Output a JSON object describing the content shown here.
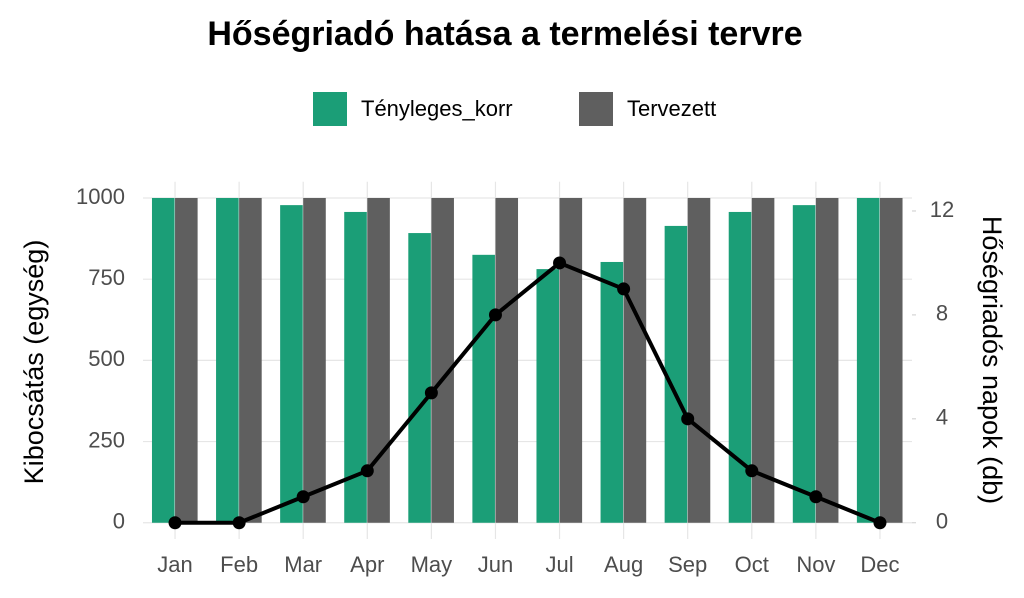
{
  "chart_data": {
    "type": "bar",
    "title": "Hőségriadó hatása a termelési tervre",
    "y_label": "Kibocsátás (egység)",
    "y2_label": "Hőségriadós napok (db)",
    "categories": [
      "Jan",
      "Feb",
      "Mar",
      "Apr",
      "May",
      "Jun",
      "Jul",
      "Aug",
      "Sep",
      "Oct",
      "Nov",
      "Dec"
    ],
    "series": [
      {
        "name": "Tényleges_korr",
        "type": "bar",
        "color": "#1b9e77",
        "values": [
          1000,
          1000,
          978,
          957,
          892,
          825,
          781,
          803,
          914,
          957,
          978,
          1000
        ]
      },
      {
        "name": "Tervezett",
        "type": "bar",
        "color": "#5f5f5f",
        "values": [
          1000,
          1000,
          1000,
          1000,
          1000,
          1000,
          1000,
          1000,
          1000,
          1000,
          1000,
          1000
        ]
      },
      {
        "type": "line",
        "axis": "y2",
        "color": "#000000",
        "values": [
          0,
          0,
          1,
          2,
          5,
          8,
          10,
          9,
          4,
          2,
          1,
          0
        ]
      }
    ],
    "ylim": [
      -50,
      1050
    ],
    "yticks": [
      0,
      250,
      500,
      750,
      1000
    ],
    "y2lim": [
      -0.625,
      13.125
    ],
    "y2ticks": [
      0,
      4,
      8,
      12
    ],
    "grid": true,
    "legend": "top"
  }
}
